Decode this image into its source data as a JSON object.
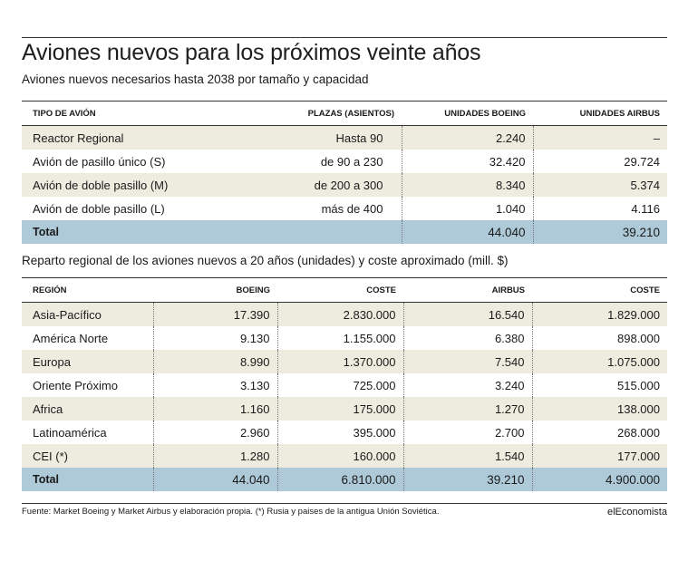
{
  "title": "Aviones nuevos para los próximos veinte años",
  "table1": {
    "subtitle": "Aviones nuevos necesarios hasta 2038 por tamaño y capacidad",
    "headers": [
      "TIPO DE AVIÓN",
      "PLAZAS (ASIENTOS)",
      "UNIDADES BOEING",
      "UNIDADES AIRBUS"
    ],
    "rows": [
      {
        "tipo": "Reactor Regional",
        "plazas": "Hasta 90",
        "boeing": "2.240",
        "airbus": "–"
      },
      {
        "tipo": "Avión de pasillo único (S)",
        "plazas": "de 90 a 230",
        "boeing": "32.420",
        "airbus": "29.724"
      },
      {
        "tipo": "Avión de doble pasillo (M)",
        "plazas": "de 200 a 300",
        "boeing": "8.340",
        "airbus": "5.374"
      },
      {
        "tipo": "Avión de doble pasillo (L)",
        "plazas": "más de 400",
        "boeing": "1.040",
        "airbus": "4.116"
      }
    ],
    "total": {
      "label": "Total",
      "boeing": "44.040",
      "airbus": "39.210"
    }
  },
  "table2": {
    "subtitle": "Reparto regional de los aviones nuevos a 20 años (unidades) y coste aproximado (mill. $)",
    "headers": [
      "REGIÓN",
      "BOEING",
      "COSTE",
      "AIRBUS",
      "COSTE"
    ],
    "rows": [
      {
        "region": "Asia-Pacífico",
        "boeing": "17.390",
        "coste_b": "2.830.000",
        "airbus": "16.540",
        "coste_a": "1.829.000"
      },
      {
        "region": "América Norte",
        "boeing": "9.130",
        "coste_b": "1.155.000",
        "airbus": "6.380",
        "coste_a": "898.000"
      },
      {
        "region": "Europa",
        "boeing": "8.990",
        "coste_b": "1.370.000",
        "airbus": "7.540",
        "coste_a": "1.075.000"
      },
      {
        "region": "Oriente Próximo",
        "boeing": "3.130",
        "coste_b": "725.000",
        "airbus": "3.240",
        "coste_a": "515.000"
      },
      {
        "region": "Africa",
        "boeing": "1.160",
        "coste_b": "175.000",
        "airbus": "1.270",
        "coste_a": "138.000"
      },
      {
        "region": "Latinoamérica",
        "boeing": "2.960",
        "coste_b": "395.000",
        "airbus": "2.700",
        "coste_a": "268.000"
      },
      {
        "region": "CEI (*)",
        "boeing": "1.280",
        "coste_b": "160.000",
        "airbus": "1.540",
        "coste_a": "177.000"
      }
    ],
    "total": {
      "label": "Total",
      "boeing": "44.040",
      "coste_b": "6.810.000",
      "airbus": "39.210",
      "coste_a": "4.900.000"
    }
  },
  "footer": {
    "source": "Fuente: Market Boeing y Market Airbus y elaboración propia. (*) Rusia y paises de la antigua Unión Soviética.",
    "brand": "elEconomista"
  },
  "colors": {
    "alt_row": "#eeebdf",
    "total_row": "#aecad9"
  }
}
